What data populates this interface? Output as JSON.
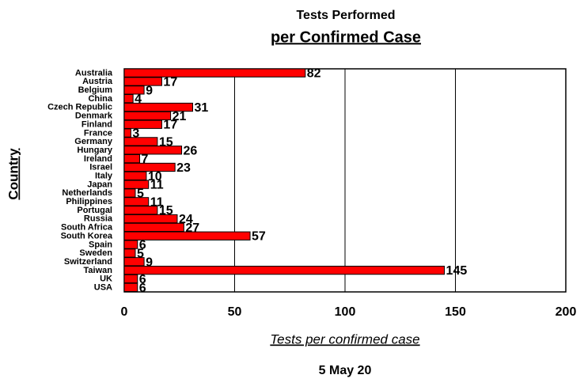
{
  "chart_data": {
    "type": "hbar",
    "title": "Tests Performed",
    "subtitle": "per Confirmed Case",
    "x_label": "Tests per confirmed case",
    "y_label": "Country",
    "footer": "5 May 20",
    "categories": [
      "Australia",
      "Austria",
      "Belgium",
      "China",
      "Czech Republic",
      "Denmark",
      "Finland",
      "France",
      "Germany",
      "Hungary",
      "Ireland",
      "Israel",
      "Italy",
      "Japan",
      "Netherlands",
      "Philippines",
      "Portugal",
      "Russia",
      "South Africa",
      "South Korea",
      "Spain",
      "Sweden",
      "Switzerland",
      "Taiwan",
      "UK",
      "USA"
    ],
    "values": [
      82,
      17,
      9,
      4,
      31,
      21,
      17,
      3,
      15,
      26,
      7,
      23,
      10,
      11,
      5,
      11,
      15,
      24,
      27,
      57,
      6,
      5,
      9,
      145,
      6,
      6
    ],
    "color": "#ff0000",
    "xlim": [
      0,
      200
    ],
    "xticks": [
      0,
      50,
      100,
      150,
      200
    ],
    "grid": true
  }
}
